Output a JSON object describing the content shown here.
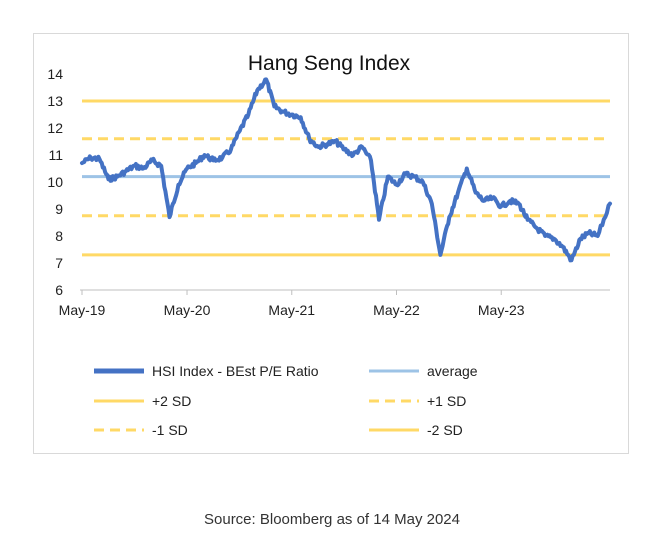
{
  "chart_data": {
    "type": "line",
    "title": "Hang Seng Index",
    "xlabel": "",
    "ylabel": "",
    "x_range": [
      "2019-05-01",
      "2024-05-14"
    ],
    "ylim": [
      6,
      14
    ],
    "y_ticks": [
      6,
      7,
      8,
      9,
      10,
      11,
      12,
      13,
      14
    ],
    "x_ticks": [
      {
        "date": "2019-05-01",
        "label": "May-19"
      },
      {
        "date": "2020-05-01",
        "label": "May-20"
      },
      {
        "date": "2021-05-01",
        "label": "May-21"
      },
      {
        "date": "2022-05-01",
        "label": "May-22"
      },
      {
        "date": "2023-05-01",
        "label": "May-23"
      }
    ],
    "grid": false,
    "legend_position": "bottom",
    "series": [
      {
        "name": "HSI Index - BEst P/E Ratio",
        "color": "#4472c4",
        "points": [
          [
            "2019-05-01",
            10.7
          ],
          [
            "2019-06-01",
            10.9
          ],
          [
            "2019-07-01",
            10.85
          ],
          [
            "2019-08-01",
            10.1
          ],
          [
            "2019-09-01",
            10.2
          ],
          [
            "2019-10-01",
            10.4
          ],
          [
            "2019-11-01",
            10.6
          ],
          [
            "2019-12-01",
            10.5
          ],
          [
            "2020-01-01",
            10.8
          ],
          [
            "2020-02-01",
            10.6
          ],
          [
            "2020-03-01",
            8.7
          ],
          [
            "2020-04-01",
            9.9
          ],
          [
            "2020-05-01",
            10.5
          ],
          [
            "2020-06-01",
            10.7
          ],
          [
            "2020-07-01",
            11.0
          ],
          [
            "2020-08-01",
            10.8
          ],
          [
            "2020-09-01",
            10.9
          ],
          [
            "2020-10-01",
            11.2
          ],
          [
            "2020-11-01",
            11.9
          ],
          [
            "2020-12-01",
            12.5
          ],
          [
            "2021-01-01",
            13.4
          ],
          [
            "2021-02-01",
            13.8
          ],
          [
            "2021-03-01",
            12.8
          ],
          [
            "2021-04-01",
            12.6
          ],
          [
            "2021-05-01",
            12.5
          ],
          [
            "2021-06-01",
            12.4
          ],
          [
            "2021-07-01",
            11.6
          ],
          [
            "2021-08-01",
            11.3
          ],
          [
            "2021-09-01",
            11.4
          ],
          [
            "2021-10-01",
            11.5
          ],
          [
            "2021-11-01",
            11.2
          ],
          [
            "2021-12-01",
            11.0
          ],
          [
            "2022-01-01",
            11.3
          ],
          [
            "2022-02-01",
            10.8
          ],
          [
            "2022-03-01",
            8.6
          ],
          [
            "2022-04-01",
            10.2
          ],
          [
            "2022-05-01",
            9.9
          ],
          [
            "2022-06-01",
            10.3
          ],
          [
            "2022-07-01",
            10.2
          ],
          [
            "2022-08-01",
            10.0
          ],
          [
            "2022-09-01",
            9.2
          ],
          [
            "2022-10-01",
            7.3
          ],
          [
            "2022-11-01",
            8.7
          ],
          [
            "2022-12-01",
            9.6
          ],
          [
            "2023-01-01",
            10.5
          ],
          [
            "2023-02-01",
            9.6
          ],
          [
            "2023-03-01",
            9.3
          ],
          [
            "2023-04-01",
            9.4
          ],
          [
            "2023-05-01",
            9.1
          ],
          [
            "2023-06-01",
            9.3
          ],
          [
            "2023-07-01",
            9.2
          ],
          [
            "2023-08-01",
            8.6
          ],
          [
            "2023-09-01",
            8.3
          ],
          [
            "2023-10-01",
            8.0
          ],
          [
            "2023-11-01",
            7.9
          ],
          [
            "2023-12-01",
            7.6
          ],
          [
            "2024-01-01",
            7.1
          ],
          [
            "2024-02-01",
            7.9
          ],
          [
            "2024-03-01",
            8.1
          ],
          [
            "2024-04-01",
            8.0
          ],
          [
            "2024-05-14",
            9.2
          ]
        ]
      },
      {
        "name": "average",
        "color": "#9dc3e6",
        "style": "solid",
        "value": 10.2
      },
      {
        "name": "+2 SD",
        "color": "#ffd966",
        "style": "solid",
        "value": 13.0
      },
      {
        "name": "+1 SD",
        "color": "#ffd966",
        "style": "dashed",
        "value": 11.6
      },
      {
        "name": "-1 SD",
        "color": "#ffd966",
        "style": "dashed",
        "value": 8.75
      },
      {
        "name": "-2 SD",
        "color": "#ffd966",
        "style": "solid",
        "value": 7.3
      }
    ]
  },
  "source": "Source: Bloomberg as of 14 May 2024"
}
